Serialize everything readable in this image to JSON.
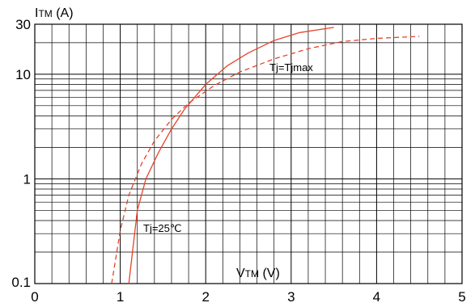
{
  "chart_data": {
    "type": "line",
    "xlabel": {
      "main": "V",
      "sub": "TM",
      "unit": " (V)"
    },
    "ylabel": {
      "main": "I",
      "sub": "TM",
      "unit": " (A)"
    },
    "xlim": [
      0,
      5
    ],
    "ylim": [
      0.1,
      30
    ],
    "yscale": "log",
    "grid": true,
    "x_ticks": [
      0,
      1,
      2,
      3,
      4,
      5
    ],
    "x_tick_labels": [
      "0",
      "1",
      "2",
      "3",
      "4",
      "5"
    ],
    "y_ticks": [
      0.1,
      1,
      10,
      30
    ],
    "y_tick_labels": [
      "0.1",
      "1",
      "10",
      "30"
    ],
    "series": [
      {
        "name": "Tj=25℃",
        "style": "solid",
        "color": "#e8432a",
        "x": [
          1.1,
          1.2,
          1.3,
          1.45,
          1.6,
          1.75,
          2.0,
          2.25,
          2.5,
          2.8,
          3.1,
          3.5
        ],
        "y": [
          0.1,
          0.5,
          1.0,
          1.8,
          3.0,
          4.6,
          8.0,
          12.0,
          16.0,
          21.0,
          25.0,
          28.0
        ]
      },
      {
        "name": "Tj=Tjmax",
        "style": "dashed",
        "color": "#e8432a",
        "x": [
          0.9,
          1.0,
          1.1,
          1.25,
          1.4,
          1.6,
          1.8,
          2.1,
          2.4,
          2.8,
          3.2,
          3.6,
          4.0,
          4.5
        ],
        "y": [
          0.1,
          0.32,
          0.7,
          1.4,
          2.3,
          3.7,
          5.3,
          7.8,
          10.5,
          14.0,
          17.5,
          20.5,
          22.0,
          23.0
        ]
      }
    ],
    "annotations": [
      {
        "text": "Tj=25℃",
        "series": 0
      },
      {
        "text": "Tj=Tjmax",
        "series": 1
      }
    ]
  }
}
